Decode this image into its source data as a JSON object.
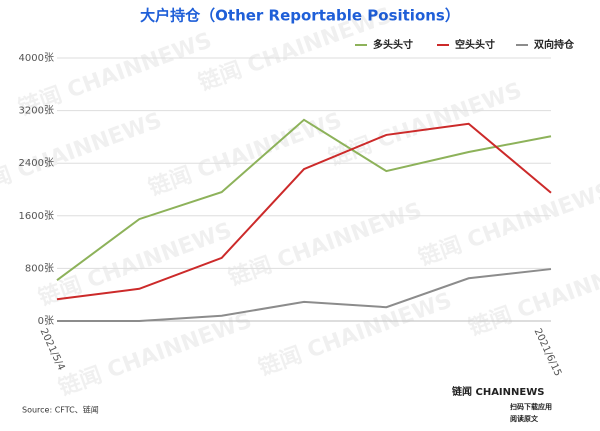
{
  "chart_data": {
    "type": "line",
    "title": "大户持仓（Other Reportable Positions）",
    "categories": [
      "2021/5/4",
      null,
      null,
      null,
      null,
      null,
      "2021/6/15"
    ],
    "series": [
      {
        "name": "多头头寸",
        "color": "#8db25a",
        "values": [
          620,
          1550,
          1960,
          3060,
          2280,
          2570,
          2810
        ]
      },
      {
        "name": "空头头寸",
        "color": "#cc2a2a",
        "values": [
          330,
          490,
          960,
          2310,
          2830,
          3000,
          1950
        ]
      },
      {
        "name": "双向持仓",
        "color": "#8c8c8c",
        "values": [
          0,
          0,
          80,
          290,
          210,
          650,
          790
        ]
      }
    ],
    "ylim": [
      0,
      4000
    ],
    "yticks": [
      {
        "value": 0,
        "label": "0张"
      },
      {
        "value": 800,
        "label": "800张"
      },
      {
        "value": 1600,
        "label": "1600张"
      },
      {
        "value": 2400,
        "label": "2400张"
      },
      {
        "value": 3200,
        "label": "3200张"
      },
      {
        "value": 4000,
        "label": "4000张"
      }
    ],
    "grid": true,
    "legend": "top-right",
    "source": "Source: CFTC、链闻",
    "watermark": "链闻 CHAINNEWS",
    "logo": "链闻 CHAINNEWS",
    "logo_lines": [
      "扫码下载应用",
      "阅读原文"
    ]
  }
}
